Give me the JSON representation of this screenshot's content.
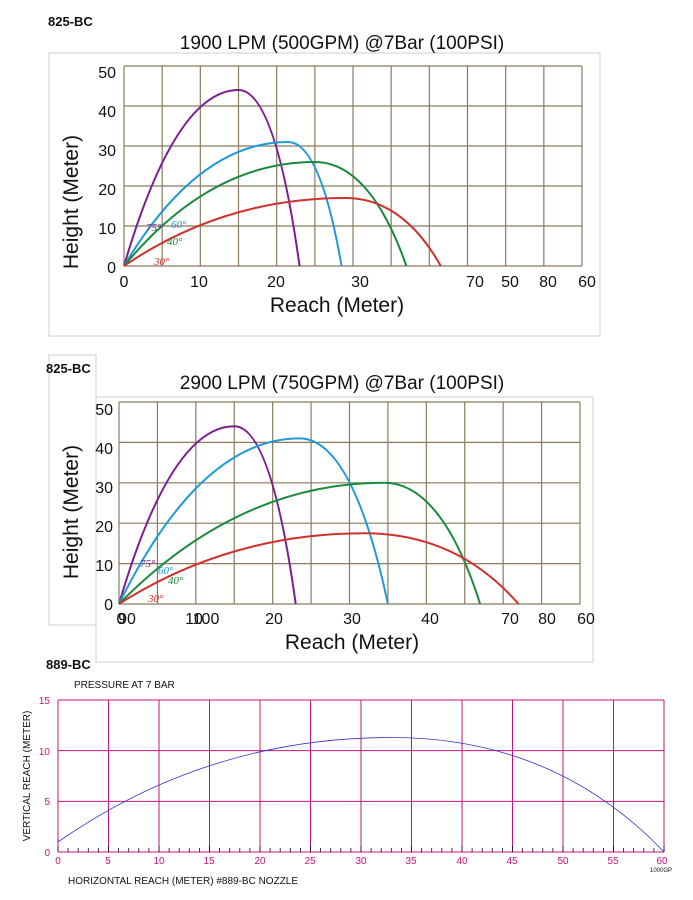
{
  "chart_data": [
    {
      "model": "825-BC",
      "type": "line",
      "title": "1900 LPM (500GPM) @7Bar (100PSI)",
      "xlabel": "Reach  (Meter)",
      "ylabel": "Height (Meter)",
      "xticks": [
        "0",
        "10",
        "20",
        "30",
        "70",
        "50",
        "80",
        "60"
      ],
      "yticks": [
        "0",
        "10",
        "20",
        "30",
        "40",
        "50"
      ],
      "xlim": [
        0,
        60
      ],
      "ylim": [
        0,
        50
      ],
      "grid": true,
      "series": [
        {
          "name": "75°",
          "color": "#7a1f8c",
          "x": [
            0,
            15,
            23
          ],
          "y": [
            0,
            44,
            0
          ]
        },
        {
          "name": "60°",
          "color": "#1e9ad6",
          "x": [
            0,
            21.5,
            28.5
          ],
          "y": [
            0,
            31,
            0
          ]
        },
        {
          "name": "40°",
          "color": "#1a8a3e",
          "x": [
            0,
            25,
            37
          ],
          "y": [
            0,
            26,
            0
          ]
        },
        {
          "name": "30°",
          "color": "#d0312d",
          "x": [
            0,
            29,
            41.5
          ],
          "y": [
            0,
            17,
            0
          ]
        }
      ]
    },
    {
      "model": "825-BC",
      "type": "line",
      "title": "2900 LPM (750GPM) @7Bar (100PSI)",
      "xlabel": "Reach  (Meter)",
      "ylabel": "Height (Meter)",
      "xticks": [
        "0",
        "90",
        "10",
        "100",
        "20",
        "30",
        "40",
        "70",
        "80",
        "60"
      ],
      "yticks": [
        "0",
        "10",
        "20",
        "30",
        "40",
        "50"
      ],
      "xlim": [
        0,
        60
      ],
      "ylim": [
        0,
        50
      ],
      "grid": true,
      "series": [
        {
          "name": "75°",
          "color": "#7a1f8c",
          "x": [
            0,
            15,
            23
          ],
          "y": [
            0,
            44,
            0
          ]
        },
        {
          "name": "60°",
          "color": "#1e9ad6",
          "x": [
            0,
            23.5,
            35
          ],
          "y": [
            0,
            41,
            0
          ]
        },
        {
          "name": "40°",
          "color": "#1a8a3e",
          "x": [
            0,
            34.5,
            47
          ],
          "y": [
            0,
            30,
            0
          ]
        },
        {
          "name": "30°",
          "color": "#d0312d",
          "x": [
            0,
            32,
            52
          ],
          "y": [
            0,
            17.5,
            0
          ]
        }
      ]
    },
    {
      "model": "889-BC",
      "type": "line",
      "title": "PRESSURE AT 7 BAR",
      "xlabel": "HORIZONTAL REACH (METER) #889-BC NOZZLE",
      "ylabel": "VERTICAL REACH (METER)",
      "corner_label": "1000GP",
      "xticks": [
        "0",
        "5",
        "10",
        "15",
        "20",
        "25",
        "30",
        "35",
        "40",
        "45",
        "50",
        "55",
        "60"
      ],
      "yticks": [
        "0",
        "5",
        "10",
        "15"
      ],
      "xlim": [
        0,
        60
      ],
      "ylim": [
        0,
        15
      ],
      "grid": true,
      "series": [
        {
          "color": "#3333cc",
          "x": [
            0,
            33,
            60
          ],
          "y": [
            1,
            11.3,
            0
          ]
        }
      ]
    }
  ]
}
